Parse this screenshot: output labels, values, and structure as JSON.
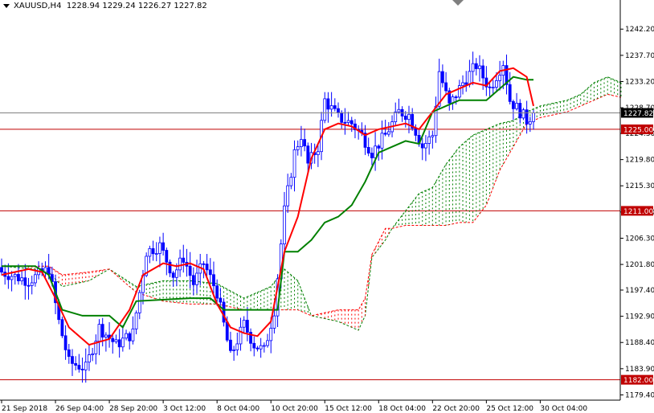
{
  "header": {
    "symbol": "XAUUSD,H4",
    "ohlc": "1228.94 1229.24 1226.27 1227.82"
  },
  "colors": {
    "up_candle": "#0000ff",
    "down_candle": "#0000ff",
    "tenkan": "#ff0000",
    "kijun": "#008000",
    "cloud_bull": "#008000",
    "cloud_bear": "#ff0000",
    "hline": "#c00000",
    "price_line": "#808080",
    "price_tag_bg": "#000000",
    "level_tag_bg": "#c00000"
  },
  "chart_data": {
    "type": "candlestick",
    "title": "XAUUSD,H4",
    "ylim": [
      1178.5,
      1247.2
    ],
    "y_ticks": [
      "1242.20",
      "1237.70",
      "1233.20",
      "1228.70",
      "1224.30",
      "1219.80",
      "1215.30",
      "1210.80",
      "1206.30",
      "1201.80",
      "1197.40",
      "1192.90",
      "1188.40",
      "1183.90",
      "1179.40"
    ],
    "x_ticks": [
      "21 Sep 2018",
      "26 Sep 04:00",
      "28 Sep 20:00",
      "3 Oct 12:00",
      "8 Oct 04:00",
      "10 Oct 20:00",
      "15 Oct 12:00",
      "18 Oct 04:00",
      "22 Oct 20:00",
      "25 Oct 12:00",
      "30 Oct 04:00"
    ],
    "x_tick_bars": [
      0,
      16,
      32,
      48,
      64,
      80,
      96,
      112,
      128,
      144,
      160
    ],
    "last_price": 1227.82,
    "h_levels": [
      1225.0,
      1211.0,
      1182.0
    ],
    "anchor_closes": [
      [
        0,
        1200.5
      ],
      [
        8,
        1199.0
      ],
      [
        14,
        1201.0
      ],
      [
        17,
        1192.0
      ],
      [
        20,
        1185.0
      ],
      [
        25,
        1184.0
      ],
      [
        29,
        1191.0
      ],
      [
        34,
        1188.0
      ],
      [
        39,
        1190.0
      ],
      [
        43,
        1204.0
      ],
      [
        47,
        1205.0
      ],
      [
        51,
        1200.0
      ],
      [
        54,
        1203.0
      ],
      [
        57,
        1198.5
      ],
      [
        60,
        1202.0
      ],
      [
        64,
        1197.0
      ],
      [
        68,
        1186.0
      ],
      [
        72,
        1191.5
      ],
      [
        75,
        1188.0
      ],
      [
        78,
        1187.0
      ],
      [
        81,
        1194.0
      ],
      [
        84,
        1211.0
      ],
      [
        87,
        1221.0
      ],
      [
        89,
        1224.0
      ],
      [
        91,
        1219.0
      ],
      [
        94,
        1222.0
      ],
      [
        96,
        1230.0
      ],
      [
        100,
        1227.0
      ],
      [
        104,
        1226.0
      ],
      [
        107,
        1224.0
      ],
      [
        110,
        1221.0
      ],
      [
        114,
        1224.0
      ],
      [
        118,
        1228.0
      ],
      [
        121,
        1227.5
      ],
      [
        125,
        1222.0
      ],
      [
        128,
        1224.0
      ],
      [
        130,
        1235.0
      ],
      [
        133,
        1229.0
      ],
      [
        137,
        1233.0
      ],
      [
        141,
        1236.0
      ],
      [
        145,
        1232.0
      ],
      [
        149,
        1236.5
      ],
      [
        151,
        1230.0
      ],
      [
        154,
        1228.0
      ],
      [
        156,
        1226.5
      ],
      [
        158,
        1227.82
      ]
    ],
    "series": [
      {
        "name": "tenkan",
        "points": [
          [
            0,
            1200.0
          ],
          [
            8,
            1201.0
          ],
          [
            12,
            1200.5
          ],
          [
            16,
            1196.0
          ],
          [
            20,
            1191.0
          ],
          [
            26,
            1188.0
          ],
          [
            32,
            1189.0
          ],
          [
            38,
            1194.0
          ],
          [
            42,
            1200.0
          ],
          [
            48,
            1202.0
          ],
          [
            52,
            1201.5
          ],
          [
            56,
            1202.0
          ],
          [
            60,
            1201.0
          ],
          [
            64,
            1195.0
          ],
          [
            68,
            1191.0
          ],
          [
            72,
            1190.0
          ],
          [
            76,
            1189.5
          ],
          [
            80,
            1192.0
          ],
          [
            84,
            1204.0
          ],
          [
            88,
            1210.0
          ],
          [
            92,
            1220.0
          ],
          [
            96,
            1225.0
          ],
          [
            100,
            1226.0
          ],
          [
            104,
            1225.5
          ],
          [
            108,
            1224.0
          ],
          [
            112,
            1225.0
          ],
          [
            116,
            1225.5
          ],
          [
            120,
            1226.0
          ],
          [
            124,
            1225.0
          ],
          [
            128,
            1228.0
          ],
          [
            132,
            1231.0
          ],
          [
            136,
            1232.0
          ],
          [
            140,
            1233.0
          ],
          [
            144,
            1232.5
          ],
          [
            148,
            1235.0
          ],
          [
            152,
            1235.5
          ],
          [
            156,
            1234.0
          ],
          [
            158,
            1229.0
          ]
        ]
      },
      {
        "name": "kijun",
        "points": [
          [
            0,
            1201.5
          ],
          [
            10,
            1201.5
          ],
          [
            14,
            1200.0
          ],
          [
            18,
            1194.0
          ],
          [
            24,
            1193.0
          ],
          [
            32,
            1193.0
          ],
          [
            36,
            1191.0
          ],
          [
            40,
            1195.5
          ],
          [
            56,
            1196.0
          ],
          [
            62,
            1196.0
          ],
          [
            66,
            1194.0
          ],
          [
            76,
            1194.0
          ],
          [
            82,
            1194.0
          ],
          [
            84,
            1204.0
          ],
          [
            88,
            1204.0
          ],
          [
            92,
            1206.0
          ],
          [
            96,
            1209.0
          ],
          [
            100,
            1210.0
          ],
          [
            104,
            1212.0
          ],
          [
            108,
            1216.0
          ],
          [
            112,
            1221.0
          ],
          [
            116,
            1222.0
          ],
          [
            120,
            1223.0
          ],
          [
            124,
            1222.5
          ],
          [
            128,
            1228.0
          ],
          [
            136,
            1230.0
          ],
          [
            144,
            1230.0
          ],
          [
            148,
            1232.0
          ],
          [
            152,
            1234.0
          ],
          [
            156,
            1233.5
          ],
          [
            158,
            1233.5
          ]
        ]
      },
      {
        "name": "cloud_a",
        "points": [
          [
            0,
            1201.5
          ],
          [
            10,
            1201.0
          ],
          [
            14,
            1200.5
          ],
          [
            18,
            1198.0
          ],
          [
            26,
            1199.0
          ],
          [
            32,
            1201.0
          ],
          [
            40,
            1198.0
          ],
          [
            48,
            1199.0
          ],
          [
            56,
            1199.0
          ],
          [
            64,
            1198.5
          ],
          [
            72,
            1196.0
          ],
          [
            80,
            1198.0
          ],
          [
            84,
            1201.0
          ],
          [
            88,
            1199.0
          ],
          [
            92,
            1193.0
          ],
          [
            100,
            1192.0
          ],
          [
            106,
            1190.5
          ],
          [
            108,
            1193.0
          ],
          [
            110,
            1203.0
          ],
          [
            114,
            1206.0
          ],
          [
            116,
            1208.0
          ],
          [
            120,
            1211.0
          ],
          [
            124,
            1214.0
          ],
          [
            128,
            1215.0
          ],
          [
            132,
            1219.0
          ],
          [
            136,
            1222.0
          ],
          [
            140,
            1224.0
          ],
          [
            144,
            1225.0
          ],
          [
            148,
            1226.0
          ],
          [
            152,
            1226.5
          ],
          [
            156,
            1228.0
          ],
          [
            160,
            1229.0
          ],
          [
            164,
            1229.5
          ],
          [
            168,
            1230.0
          ],
          [
            172,
            1231.0
          ],
          [
            176,
            1233.0
          ],
          [
            180,
            1234.0
          ],
          [
            184,
            1233.0
          ]
        ]
      },
      {
        "name": "cloud_b",
        "points": [
          [
            0,
            1201.5
          ],
          [
            10,
            1201.5
          ],
          [
            14,
            1201.5
          ],
          [
            18,
            1200.0
          ],
          [
            26,
            1200.5
          ],
          [
            32,
            1201.0
          ],
          [
            40,
            1197.0
          ],
          [
            48,
            1195.5
          ],
          [
            56,
            1195.0
          ],
          [
            64,
            1195.0
          ],
          [
            72,
            1194.0
          ],
          [
            80,
            1194.0
          ],
          [
            84,
            1194.0
          ],
          [
            88,
            1194.0
          ],
          [
            92,
            1193.0
          ],
          [
            100,
            1194.0
          ],
          [
            106,
            1194.0
          ],
          [
            108,
            1196.0
          ],
          [
            110,
            1203.5
          ],
          [
            114,
            1208.0
          ],
          [
            116,
            1208.0
          ],
          [
            120,
            1208.5
          ],
          [
            124,
            1208.5
          ],
          [
            128,
            1208.5
          ],
          [
            132,
            1208.5
          ],
          [
            136,
            1209.0
          ],
          [
            140,
            1209.0
          ],
          [
            144,
            1212.0
          ],
          [
            148,
            1218.0
          ],
          [
            152,
            1222.0
          ],
          [
            156,
            1226.0
          ],
          [
            160,
            1227.0
          ],
          [
            164,
            1227.5
          ],
          [
            168,
            1228.0
          ],
          [
            172,
            1229.0
          ],
          [
            176,
            1230.0
          ],
          [
            180,
            1231.0
          ],
          [
            184,
            1230.5
          ]
        ]
      }
    ]
  }
}
